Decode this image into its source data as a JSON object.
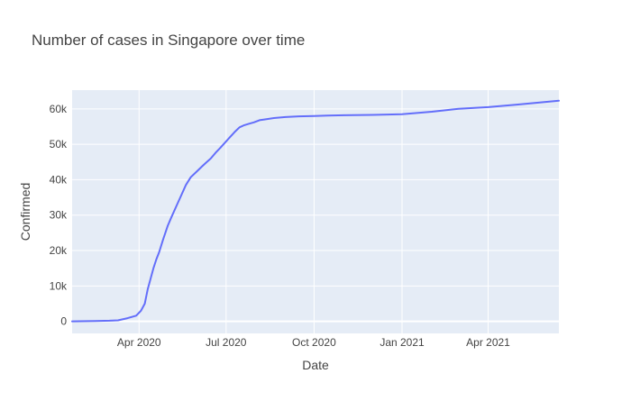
{
  "chart_data": {
    "type": "line",
    "title": "Number of cases in Singapore over time",
    "xlabel": "Date",
    "ylabel": "Confirmed",
    "x_ticks": [
      {
        "date": "2020-04-01",
        "label": "Apr 2020"
      },
      {
        "date": "2020-07-01",
        "label": "Jul 2020"
      },
      {
        "date": "2020-10-01",
        "label": "Oct 2020"
      },
      {
        "date": "2021-01-01",
        "label": "Jan 2021"
      },
      {
        "date": "2021-04-01",
        "label": "Apr 2021"
      }
    ],
    "y_ticks": [
      {
        "value": 0,
        "label": "0"
      },
      {
        "value": 10000,
        "label": "10k"
      },
      {
        "value": 20000,
        "label": "20k"
      },
      {
        "value": 30000,
        "label": "30k"
      },
      {
        "value": 40000,
        "label": "40k"
      },
      {
        "value": 50000,
        "label": "50k"
      },
      {
        "value": 60000,
        "label": "60k"
      }
    ],
    "xlim": [
      "2020-01-22",
      "2021-06-14"
    ],
    "ylim": [
      -3400,
      65300
    ],
    "grid": true,
    "colors": {
      "line": "#636efa",
      "plot_bg": "#e5ecf6",
      "grid": "#ffffff"
    },
    "series": [
      {
        "x": [
          "2020-01-22",
          "2020-02-15",
          "2020-03-01",
          "2020-03-10",
          "2020-03-20",
          "2020-03-29",
          "2020-04-03",
          "2020-04-07",
          "2020-04-10",
          "2020-04-13",
          "2020-04-16",
          "2020-04-19",
          "2020-04-22",
          "2020-04-26",
          "2020-05-01",
          "2020-05-05",
          "2020-05-10",
          "2020-05-15",
          "2020-05-20",
          "2020-05-25",
          "2020-06-01",
          "2020-06-06",
          "2020-06-10",
          "2020-06-15",
          "2020-06-20",
          "2020-06-25",
          "2020-06-30",
          "2020-07-05",
          "2020-07-10",
          "2020-07-15",
          "2020-07-20",
          "2020-07-25",
          "2020-07-30",
          "2020-08-05",
          "2020-08-10",
          "2020-08-20",
          "2020-09-01",
          "2020-09-15",
          "2020-10-01",
          "2020-10-15",
          "2020-11-01",
          "2020-12-01",
          "2021-01-01",
          "2021-02-01",
          "2021-03-01",
          "2021-04-01",
          "2021-05-01",
          "2021-06-14"
        ],
        "y": [
          0,
          100,
          200,
          300,
          900,
          1600,
          3000,
          5000,
          9000,
          12000,
          15000,
          17500,
          19500,
          23000,
          27000,
          29500,
          32500,
          35500,
          38500,
          40700,
          42500,
          43800,
          44800,
          46000,
          47600,
          49000,
          50500,
          52000,
          53500,
          54800,
          55400,
          55800,
          56200,
          56800,
          57000,
          57400,
          57700,
          57900,
          58000,
          58100,
          58200,
          58300,
          58500,
          59200,
          60000,
          60500,
          61200,
          62300
        ]
      }
    ]
  }
}
